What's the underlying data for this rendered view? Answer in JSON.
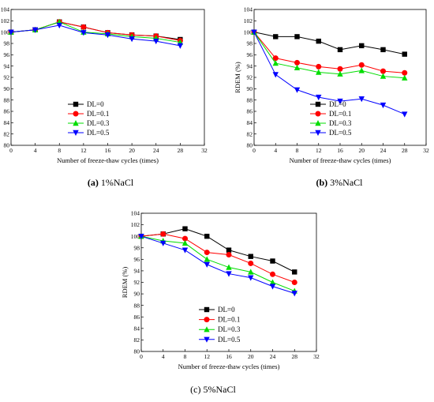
{
  "chart_data": [
    {
      "type": "line",
      "caption_letter": "(a)",
      "caption_text": " 1%NaCl",
      "xlabel": "Number of freeze-thaw cycles (times)",
      "ylabel": "RDEM(%)",
      "xlim": [
        0,
        32
      ],
      "ylim": [
        80,
        104
      ],
      "xticks": [
        0,
        4,
        8,
        12,
        16,
        20,
        24,
        28,
        32
      ],
      "yticks": [
        80,
        82,
        84,
        86,
        88,
        90,
        92,
        94,
        96,
        98,
        100,
        102,
        104
      ],
      "legend_position": "lower-center",
      "x": [
        0,
        4,
        8,
        12,
        16,
        20,
        24,
        28
      ],
      "series": [
        {
          "name": "DL=0",
          "color": "#000000",
          "marker": "square",
          "values": [
            100,
            100.4,
            101.8,
            100.9,
            99.9,
            99.5,
            99.3,
            98.7
          ]
        },
        {
          "name": "DL=0.1",
          "color": "#ff0000",
          "marker": "circle",
          "values": [
            100,
            100.4,
            101.8,
            100.9,
            99.9,
            99.5,
            99.3,
            98.5
          ]
        },
        {
          "name": "DL=0.3",
          "color": "#00dd00",
          "marker": "triangle-up",
          "values": [
            100,
            100.4,
            101.8,
            100.0,
            99.7,
            99.2,
            98.9,
            98.2
          ]
        },
        {
          "name": "DL=0.5",
          "color": "#0000ff",
          "marker": "triangle-down",
          "values": [
            100,
            100.4,
            101.2,
            99.9,
            99.5,
            98.8,
            98.4,
            97.6
          ]
        }
      ]
    },
    {
      "type": "line",
      "caption_letter": "(b)",
      "caption_text": " 3%NaCl",
      "xlabel": "Number of freeze-thaw cycles (times)",
      "ylabel": "RDEM (%)",
      "xlim": [
        0,
        32
      ],
      "ylim": [
        80,
        104
      ],
      "xticks": [
        0,
        4,
        8,
        12,
        16,
        20,
        24,
        28,
        32
      ],
      "yticks": [
        80,
        82,
        84,
        86,
        88,
        90,
        92,
        94,
        96,
        98,
        100,
        102,
        104
      ],
      "legend_position": "lower-center",
      "x": [
        0,
        4,
        8,
        12,
        16,
        20,
        24,
        28
      ],
      "series": [
        {
          "name": "DL=0",
          "color": "#000000",
          "marker": "square",
          "values": [
            100,
            99.2,
            99.2,
            98.4,
            96.9,
            97.6,
            96.9,
            96.1
          ]
        },
        {
          "name": "DL=0.1",
          "color": "#ff0000",
          "marker": "circle",
          "values": [
            100,
            95.4,
            94.6,
            93.9,
            93.5,
            94.2,
            93.1,
            92.8
          ]
        },
        {
          "name": "DL=0.3",
          "color": "#00dd00",
          "marker": "triangle-up",
          "values": [
            100,
            94.5,
            93.7,
            92.9,
            92.6,
            93.2,
            92.2,
            91.9
          ]
        },
        {
          "name": "DL=0.5",
          "color": "#0000ff",
          "marker": "triangle-down",
          "values": [
            100,
            92.5,
            89.8,
            88.5,
            87.8,
            88.2,
            87.1,
            85.5
          ]
        }
      ]
    },
    {
      "type": "line",
      "caption_letter": "",
      "caption_text": "(c) 5%NaCl",
      "xlabel": "Number of freeze-thaw cycles (times)",
      "ylabel": "RDEM (%)",
      "xlim": [
        0,
        32
      ],
      "ylim": [
        80,
        104
      ],
      "xticks": [
        0,
        4,
        8,
        12,
        16,
        20,
        24,
        28,
        32
      ],
      "yticks": [
        80,
        82,
        84,
        86,
        88,
        90,
        92,
        94,
        96,
        98,
        100,
        102,
        104
      ],
      "legend_position": "lower-left",
      "x": [
        0,
        4,
        8,
        12,
        16,
        20,
        24,
        28
      ],
      "series": [
        {
          "name": "DL=0",
          "color": "#000000",
          "marker": "square",
          "values": [
            100,
            100.4,
            101.3,
            100.0,
            97.6,
            96.5,
            95.7,
            93.8
          ]
        },
        {
          "name": "DL=0.1",
          "color": "#ff0000",
          "marker": "circle",
          "values": [
            100,
            100.4,
            99.6,
            97.2,
            96.8,
            95.3,
            93.4,
            92.0
          ]
        },
        {
          "name": "DL=0.3",
          "color": "#00dd00",
          "marker": "triangle-up",
          "values": [
            100,
            99.2,
            98.8,
            96.0,
            94.6,
            93.8,
            92.0,
            90.5
          ]
        },
        {
          "name": "DL=0.5",
          "color": "#0000ff",
          "marker": "triangle-down",
          "values": [
            100,
            98.8,
            97.6,
            95.1,
            93.5,
            92.8,
            91.3,
            90.1
          ]
        }
      ]
    }
  ]
}
